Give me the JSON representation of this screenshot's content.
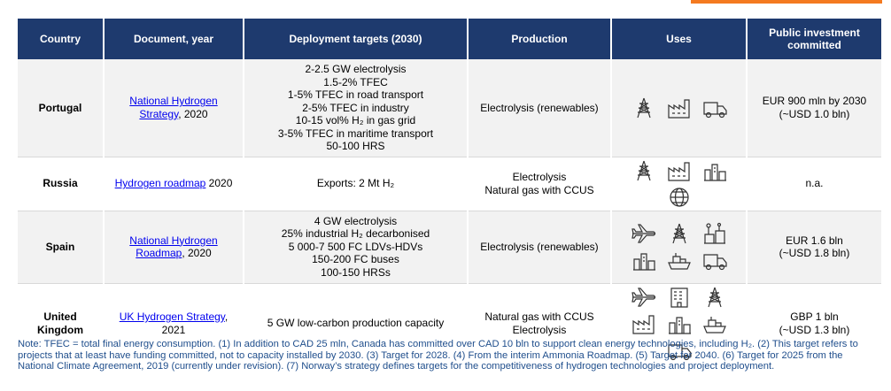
{
  "headers": {
    "country": "Country",
    "document": "Document, year",
    "targets": "Deployment targets (2030)",
    "production": "Production",
    "uses": "Uses",
    "investment": "Public investment committed"
  },
  "rows": [
    {
      "country": "Portugal",
      "doc_link": "National Hydrogen Strategy",
      "doc_suffix": ", 2020",
      "targets": [
        "2-2.5 GW electrolysis",
        "1.5-2% TFEC",
        "1-5% TFEC in road transport",
        "2-5% TFEC in industry",
        "10-15 vol% H₂ in gas grid",
        "3-5% TFEC in maritime transport",
        "50-100 HRS"
      ],
      "production": [
        "Electrolysis (renewables)"
      ],
      "uses": [
        "power-tower-icon",
        "factory-icon",
        "truck-icon"
      ],
      "investment": [
        "EUR 900 mln by 2030",
        "(~USD 1.0 bln)"
      ]
    },
    {
      "country": "Russia",
      "doc_link": "Hydrogen roadmap",
      "doc_suffix": " 2020",
      "targets": [
        "Exports: 2 Mt H₂"
      ],
      "production": [
        "Electrolysis",
        "Natural gas with CCUS"
      ],
      "uses": [
        "power-tower-icon",
        "factory-icon",
        "refinery-icon",
        "globe-icon"
      ],
      "investment": [
        "n.a."
      ]
    },
    {
      "country": "Spain",
      "doc_link": "National Hydrogen Roadmap",
      "doc_suffix": ", 2020",
      "targets": [
        "4 GW electrolysis",
        "25% industrial H₂ decarbonised",
        "5 000-7 500 FC LDVs-HDVs",
        "150-200 FC buses",
        "100-150 HRSs"
      ],
      "production": [
        "Electrolysis (renewables)"
      ],
      "uses": [
        "airplane-icon",
        "power-tower-icon",
        "chemical-plant-icon",
        "refinery-icon",
        "ship-icon",
        "truck-icon"
      ],
      "investment": [
        "EUR 1.6 bln",
        "(~USD 1.8 bln)"
      ]
    },
    {
      "country": "United Kingdom",
      "doc_link": "UK Hydrogen Strategy",
      "doc_suffix": ", 2021",
      "targets": [
        "5 GW low-carbon production capacity"
      ],
      "production": [
        "Natural gas with CCUS",
        "Electrolysis"
      ],
      "uses": [
        "airplane-icon",
        "building-icon",
        "power-tower-icon",
        "factory-icon",
        "refinery-icon",
        "ship-icon",
        "truck-icon"
      ],
      "investment": [
        "GBP 1 bln",
        "(~USD 1.3 bln)"
      ]
    }
  ],
  "note": "Note: TFEC = total final energy consumption. (1) In addition to CAD 25 mln, Canada has committed over CAD 10 bln to support clean energy technologies, including H₂. (2) This target refers to projects that at least have funding committed, not to capacity installed by 2030. (3) Target for 2028. (4) From the interim Ammonia Roadmap. (5) Target for 2040. (6) Target for 2025 from the National Climate Agreement, 2019 (currently under revision). (7) Norway’s strategy defines targets for the competitiveness of hydrogen technologies and project deployment."
}
